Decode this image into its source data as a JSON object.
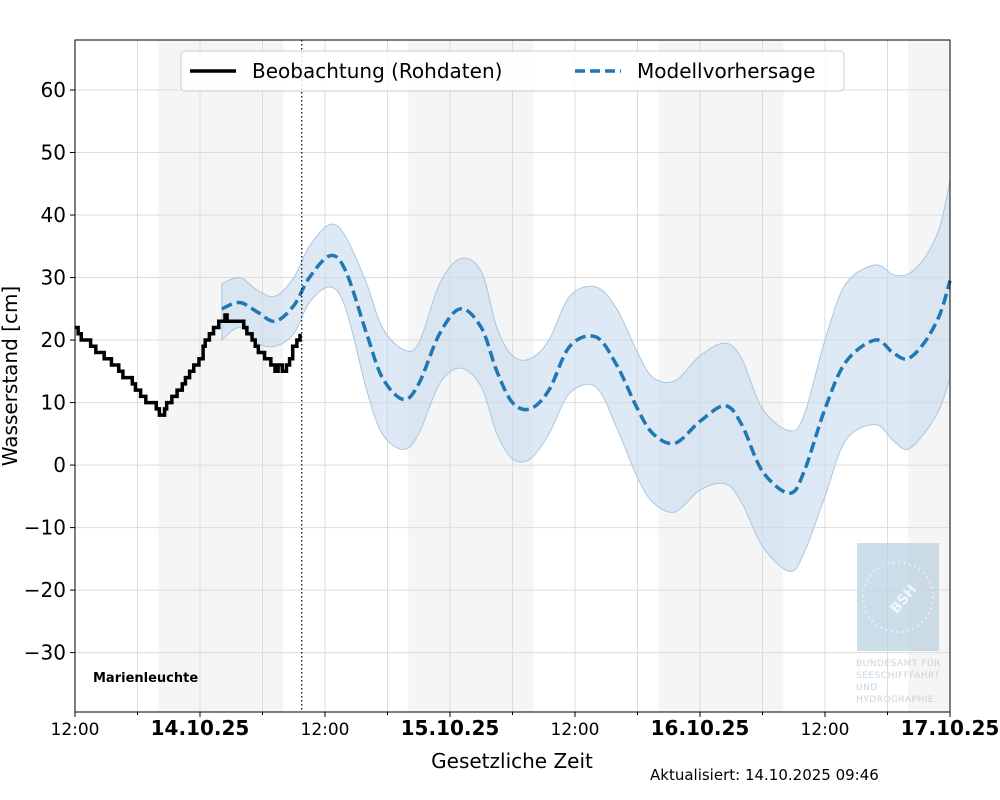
{
  "chart_data": {
    "type": "line",
    "ylabel": "Wasserstand [cm]",
    "xlabel": "Gesetzliche Zeit",
    "station": "Marienleuchte",
    "updated": "Aktualisiert: 14.10.2025 09:46",
    "logo_text": [
      "BSH",
      "BUNDESAMT FÜR",
      "SEESCHIFFFAHRT",
      "UND",
      "HYDROGRAPHIE"
    ],
    "xunit": "hours since 13.10.2025 12:00",
    "xlim": [
      0,
      84
    ],
    "ylim": [
      -39.5,
      68
    ],
    "yticks": [
      -30,
      -20,
      -10,
      0,
      10,
      20,
      30,
      40,
      50,
      60
    ],
    "xticks": [
      {
        "t": 0,
        "label": "12:00",
        "bold": false
      },
      {
        "t": 12,
        "label": "14.10.25",
        "bold": true
      },
      {
        "t": 24,
        "label": "12:00",
        "bold": false
      },
      {
        "t": 36,
        "label": "15.10.25",
        "bold": true
      },
      {
        "t": 48,
        "label": "12:00",
        "bold": false
      },
      {
        "t": 60,
        "label": "16.10.25",
        "bold": true
      },
      {
        "t": 72,
        "label": "12:00",
        "bold": false
      },
      {
        "t": 84,
        "label": "17.10.25",
        "bold": true
      }
    ],
    "night_periods": [
      [
        8,
        20
      ],
      [
        32,
        44
      ],
      [
        56,
        68
      ],
      [
        80,
        84
      ]
    ],
    "now_t": 21.77,
    "legend": {
      "position": "top-center",
      "entries": [
        "Beobachtung (Rohdaten)",
        "Modellvorhersage"
      ]
    },
    "colors": {
      "observation": "#000000",
      "forecast": "#1f77b4",
      "band": "#c6dbef",
      "night": "#f5f5f5"
    },
    "series": [
      {
        "name": "Beobachtung (Rohdaten)",
        "style": "step",
        "points": [
          [
            0,
            22
          ],
          [
            0.3,
            21
          ],
          [
            0.6,
            20
          ],
          [
            1.5,
            19
          ],
          [
            2,
            18
          ],
          [
            2.8,
            17
          ],
          [
            3.5,
            16
          ],
          [
            4.2,
            15
          ],
          [
            4.6,
            14
          ],
          [
            5.5,
            13
          ],
          [
            5.8,
            12
          ],
          [
            6.3,
            11
          ],
          [
            6.8,
            10
          ],
          [
            7.6,
            10
          ],
          [
            7.8,
            9
          ],
          [
            8.1,
            8
          ],
          [
            8.6,
            9
          ],
          [
            8.8,
            10
          ],
          [
            9.3,
            11
          ],
          [
            9.8,
            12
          ],
          [
            10.3,
            13
          ],
          [
            10.6,
            14
          ],
          [
            11,
            15
          ],
          [
            11.4,
            16
          ],
          [
            11.9,
            17
          ],
          [
            12.3,
            19
          ],
          [
            12.5,
            20
          ],
          [
            12.9,
            21
          ],
          [
            13.3,
            22
          ],
          [
            13.8,
            23
          ],
          [
            14.4,
            24
          ],
          [
            14.6,
            23
          ],
          [
            15.7,
            23
          ],
          [
            16.2,
            22
          ],
          [
            16.5,
            21
          ],
          [
            17,
            20
          ],
          [
            17.3,
            19
          ],
          [
            17.6,
            18
          ],
          [
            18.2,
            17
          ],
          [
            18.8,
            16
          ],
          [
            19.2,
            15
          ],
          [
            19.5,
            16
          ],
          [
            19.9,
            15
          ],
          [
            20.3,
            16
          ],
          [
            20.6,
            17
          ],
          [
            20.9,
            19
          ],
          [
            21.3,
            20
          ],
          [
            21.6,
            21
          ]
        ]
      },
      {
        "name": "Modellvorhersage",
        "style": "dashed",
        "points": [
          [
            14.1,
            25,
            20,
            29
          ],
          [
            15.8,
            26,
            22,
            30
          ],
          [
            17.5,
            24.5,
            19.5,
            28
          ],
          [
            19.2,
            23,
            19,
            27
          ],
          [
            21,
            25.5,
            21,
            30
          ],
          [
            22.5,
            30,
            26,
            35
          ],
          [
            24.5,
            33.5,
            28.5,
            38.5
          ],
          [
            26,
            31,
            25,
            36.5
          ],
          [
            28,
            21,
            12,
            29
          ],
          [
            29.5,
            14,
            5,
            22
          ],
          [
            31.5,
            10.5,
            2.5,
            18.5
          ],
          [
            33,
            13,
            5,
            19.5
          ],
          [
            35,
            21,
            13,
            29
          ],
          [
            37,
            25,
            15.5,
            33
          ],
          [
            39,
            22,
            12.5,
            31
          ],
          [
            40.5,
            15,
            5,
            22
          ],
          [
            42,
            10,
            1,
            17.5
          ],
          [
            43.7,
            9,
            1,
            17
          ],
          [
            45.5,
            12,
            5,
            20
          ],
          [
            47.5,
            19,
            11.5,
            27
          ],
          [
            50,
            20.5,
            12.5,
            28.5
          ],
          [
            52,
            16,
            6,
            25
          ],
          [
            54,
            9,
            -2,
            18
          ],
          [
            55.5,
            5,
            -6,
            14
          ],
          [
            57.6,
            3.5,
            -7.5,
            13.5
          ],
          [
            60,
            7,
            -4,
            17.5
          ],
          [
            62.4,
            9.5,
            -3,
            19.5
          ],
          [
            64,
            6.5,
            -6,
            17
          ],
          [
            66,
            -1,
            -13,
            9
          ],
          [
            68.6,
            -4.5,
            -17,
            5.5
          ],
          [
            70,
            -1,
            -14,
            8
          ],
          [
            72,
            9,
            -5,
            20
          ],
          [
            74,
            16.5,
            4,
            29
          ],
          [
            76.8,
            20,
            6.5,
            32
          ],
          [
            78.5,
            18,
            4,
            30.5
          ],
          [
            79.9,
            17,
            2.5,
            30.5
          ],
          [
            81.5,
            19.5,
            5,
            33
          ],
          [
            83,
            24,
            9,
            38
          ],
          [
            84,
            29.5,
            14,
            45.5
          ]
        ]
      }
    ]
  }
}
